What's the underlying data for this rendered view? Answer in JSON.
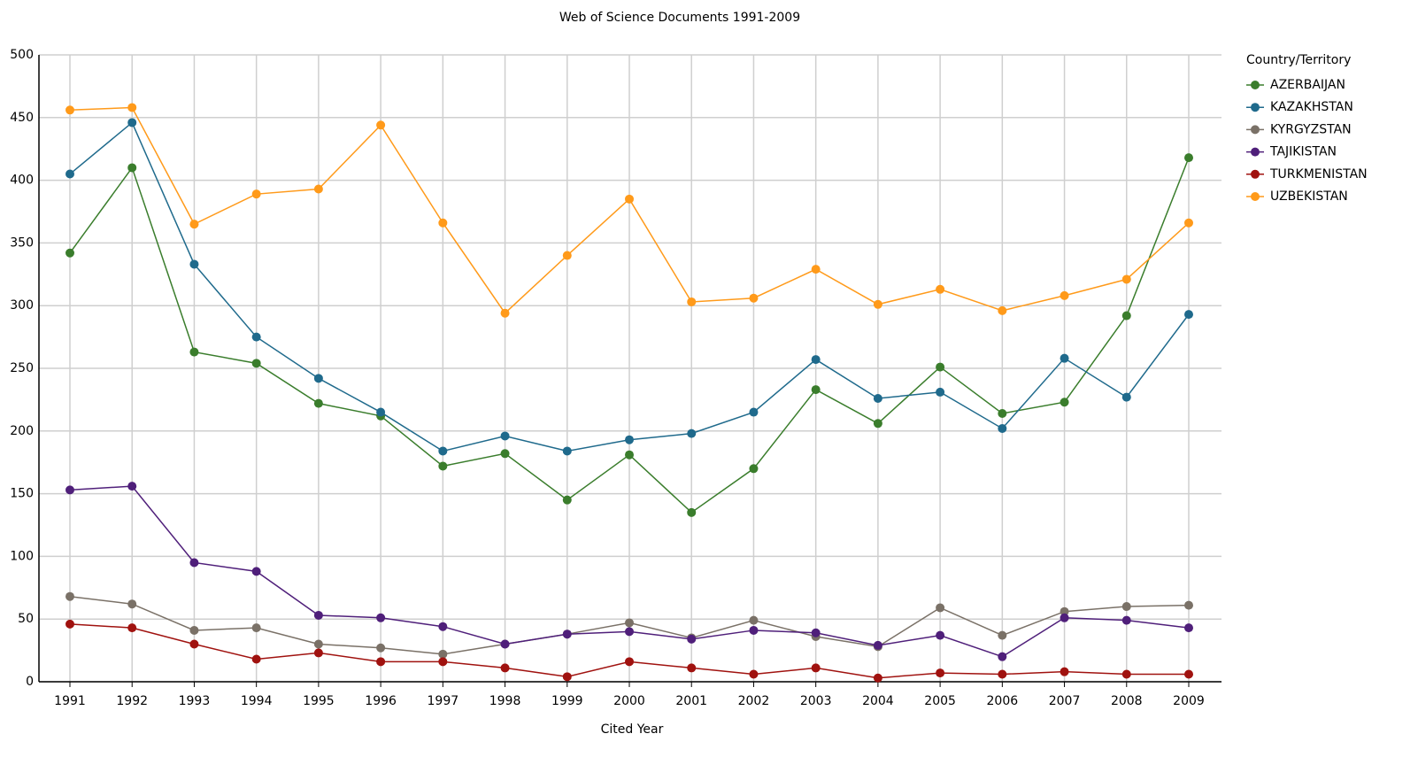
{
  "chart_data": {
    "type": "line",
    "title": "Web of Science Documents 1991-2009",
    "x_label": "Cited Year",
    "legend_title": "Country/Territory",
    "categories": [
      "1991",
      "1992",
      "1993",
      "1994",
      "1995",
      "1996",
      "1997",
      "1998",
      "1999",
      "2000",
      "2001",
      "2002",
      "2003",
      "2004",
      "2005",
      "2006",
      "2007",
      "2008",
      "2009"
    ],
    "series": [
      {
        "name": "AZERBAIJAN",
        "color": "#3a7d2c",
        "values": [
          342,
          410,
          263,
          254,
          222,
          212,
          172,
          182,
          145,
          181,
          135,
          170,
          233,
          206,
          251,
          214,
          223,
          292,
          418
        ]
      },
      {
        "name": "KAZAKHSTAN",
        "color": "#1f6a8c",
        "values": [
          405,
          446,
          333,
          275,
          242,
          215,
          184,
          196,
          184,
          193,
          198,
          215,
          257,
          226,
          231,
          202,
          258,
          227,
          293
        ]
      },
      {
        "name": "KYRGYZSTAN",
        "color": "#7a7167",
        "values": [
          68,
          62,
          41,
          43,
          30,
          27,
          22,
          30,
          38,
          47,
          35,
          49,
          36,
          28,
          59,
          37,
          56,
          60,
          61
        ]
      },
      {
        "name": "TAJIKISTAN",
        "color": "#4f1f7a",
        "values": [
          153,
          156,
          95,
          88,
          53,
          51,
          44,
          30,
          38,
          40,
          34,
          41,
          39,
          29,
          37,
          20,
          51,
          49,
          43
        ]
      },
      {
        "name": "TURKMENISTAN",
        "color": "#a0120f",
        "values": [
          46,
          43,
          30,
          18,
          23,
          16,
          16,
          11,
          4,
          16,
          11,
          6,
          11,
          3,
          7,
          6,
          8,
          6,
          6
        ]
      },
      {
        "name": "UZBEKISTAN",
        "color": "#ff9a1a",
        "values": [
          456,
          458,
          365,
          389,
          393,
          444,
          366,
          294,
          340,
          385,
          303,
          306,
          329,
          301,
          313,
          296,
          308,
          321,
          366
        ]
      }
    ],
    "ylim": [
      0,
      500
    ],
    "yticks": [
      0,
      50,
      100,
      150,
      200,
      250,
      300,
      350,
      400,
      450,
      500
    ],
    "grid": true,
    "legend": "right"
  }
}
